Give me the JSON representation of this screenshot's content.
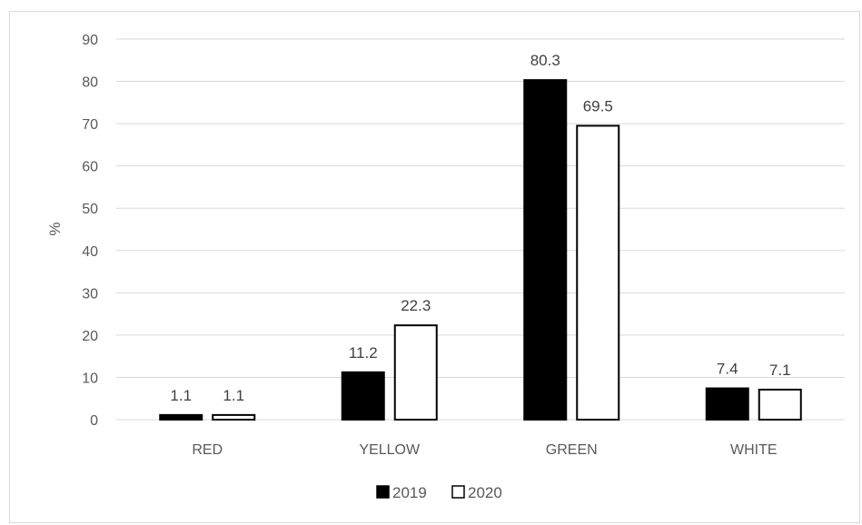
{
  "chart_data": {
    "type": "bar",
    "categories": [
      "RED",
      "YELLOW",
      "GREEN",
      "WHITE"
    ],
    "series": [
      {
        "name": "2019",
        "values": [
          1.1,
          11.2,
          80.3,
          7.4
        ],
        "color": "#000000"
      },
      {
        "name": "2020",
        "values": [
          1.1,
          22.3,
          69.5,
          7.1
        ],
        "color": "#ffffff"
      }
    ],
    "ylabel": "%",
    "xlabel": "",
    "ylim": [
      0,
      90
    ],
    "yticks": [
      0,
      10,
      20,
      30,
      40,
      50,
      60,
      70,
      80,
      90
    ],
    "grid": true,
    "legend": "bottom",
    "data_labels": true
  }
}
